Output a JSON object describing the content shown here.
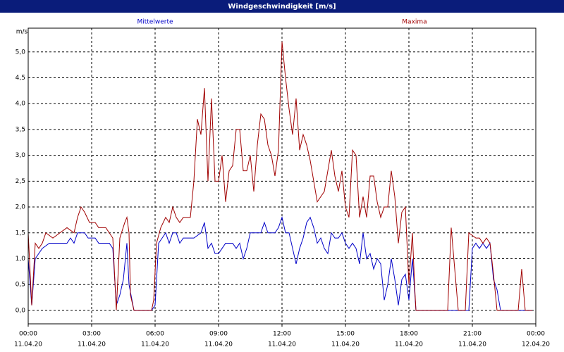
{
  "chart_data": {
    "type": "line",
    "title": "Windgeschwindigkeit [m/s]",
    "y_unit": "m/s",
    "xlim": [
      0,
      1440
    ],
    "xticks": [
      {
        "value": 0,
        "label": "00:00",
        "date": "11.04.20"
      },
      {
        "value": 180,
        "label": "03:00",
        "date": "11.04.20"
      },
      {
        "value": 360,
        "label": "06:00",
        "date": "11.04.20"
      },
      {
        "value": 540,
        "label": "09:00",
        "date": "11.04.20"
      },
      {
        "value": 720,
        "label": "12:00",
        "date": "11.04.20"
      },
      {
        "value": 900,
        "label": "15:00",
        "date": "11.04.20"
      },
      {
        "value": 1080,
        "label": "18:00",
        "date": "11.04.20"
      },
      {
        "value": 1260,
        "label": "21:00",
        "date": "11.04.20"
      },
      {
        "value": 1440,
        "label": "00:00",
        "date": "12.04.20"
      }
    ],
    "ylim": [
      -0.26,
      5.46
    ],
    "yticks": [
      {
        "value": 0,
        "label": "0,0"
      },
      {
        "value": 0.5,
        "label": "0,5"
      },
      {
        "value": 1,
        "label": "1,0"
      },
      {
        "value": 1.5,
        "label": "1,5"
      },
      {
        "value": 2,
        "label": "2,0"
      },
      {
        "value": 2.5,
        "label": "2,5"
      },
      {
        "value": 3,
        "label": "3,0"
      },
      {
        "value": 3.5,
        "label": "3,5"
      },
      {
        "value": 4,
        "label": "4,0"
      },
      {
        "value": 4.5,
        "label": "4,5"
      },
      {
        "value": 5,
        "label": "5,0"
      }
    ],
    "grid": true,
    "series": [
      {
        "name": "Mittelwerte",
        "color": "#0000c8",
        "x": [
          0,
          10,
          20,
          30,
          40,
          60,
          110,
          120,
          130,
          140,
          160,
          170,
          190,
          200,
          230,
          240,
          250,
          260,
          270,
          280,
          286,
          300,
          350,
          360,
          370,
          380,
          390,
          400,
          410,
          420,
          430,
          440,
          470,
          490,
          500,
          510,
          520,
          530,
          540,
          550,
          560,
          580,
          590,
          600,
          610,
          620,
          630,
          660,
          670,
          680,
          700,
          710,
          720,
          730,
          740,
          750,
          760,
          770,
          780,
          790,
          800,
          810,
          820,
          830,
          840,
          850,
          860,
          870,
          880,
          890,
          900,
          910,
          920,
          930,
          940,
          950,
          960,
          970,
          980,
          990,
          1000,
          1010,
          1020,
          1030,
          1040,
          1050,
          1060,
          1070,
          1080,
          1090,
          1100,
          1250,
          1260,
          1270,
          1280,
          1290,
          1300,
          1310,
          1320,
          1330,
          1340,
          1430
        ],
        "values": [
          1.0,
          0.1,
          1.0,
          1.1,
          1.2,
          1.3,
          1.3,
          1.4,
          1.3,
          1.5,
          1.5,
          1.4,
          1.4,
          1.3,
          1.3,
          1.2,
          0.1,
          0.3,
          0.6,
          1.3,
          0.5,
          0,
          0,
          0.1,
          1.3,
          1.4,
          1.5,
          1.3,
          1.5,
          1.5,
          1.3,
          1.4,
          1.4,
          1.5,
          1.7,
          1.2,
          1.3,
          1.1,
          1.1,
          1.2,
          1.3,
          1.3,
          1.2,
          1.3,
          1.0,
          1.2,
          1.5,
          1.5,
          1.7,
          1.5,
          1.5,
          1.6,
          1.8,
          1.5,
          1.5,
          1.2,
          0.9,
          1.2,
          1.4,
          1.7,
          1.8,
          1.6,
          1.3,
          1.4,
          1.2,
          1.1,
          1.5,
          1.4,
          1.4,
          1.5,
          1.3,
          1.2,
          1.3,
          1.2,
          0.9,
          1.5,
          1.0,
          1.1,
          0.8,
          1.0,
          0.9,
          0.2,
          0.5,
          1.0,
          0.6,
          0.1,
          0.6,
          0.7,
          0.2,
          1.0,
          0,
          0,
          1.2,
          1.3,
          1.2,
          1.3,
          1.2,
          1.3,
          0.6,
          0.4,
          0,
          0
        ]
      },
      {
        "name": "Maxima",
        "color": "#a00000",
        "x": [
          0,
          10,
          20,
          30,
          40,
          50,
          70,
          90,
          110,
          130,
          140,
          150,
          160,
          174,
          190,
          200,
          220,
          230,
          240,
          250,
          260,
          274,
          280,
          286,
          290,
          300,
          350,
          356,
          364,
          376,
          390,
          400,
          410,
          420,
          430,
          440,
          460,
          470,
          480,
          490,
          500,
          510,
          520,
          530,
          540,
          550,
          560,
          570,
          580,
          590,
          600,
          610,
          620,
          630,
          640,
          650,
          660,
          670,
          680,
          690,
          700,
          710,
          720,
          730,
          740,
          750,
          760,
          770,
          780,
          790,
          800,
          810,
          820,
          830,
          840,
          860,
          870,
          880,
          890,
          900,
          910,
          920,
          930,
          940,
          950,
          960,
          970,
          980,
          990,
          1000,
          1010,
          1020,
          1030,
          1040,
          1050,
          1060,
          1070,
          1080,
          1090,
          1096,
          1100,
          1190,
          1200,
          1210,
          1220,
          1240,
          1250,
          1270,
          1280,
          1290,
          1300,
          1310,
          1320,
          1330,
          1390,
          1400,
          1410,
          1430
        ],
        "values": [
          1.5,
          0.1,
          1.3,
          1.2,
          1.3,
          1.5,
          1.4,
          1.5,
          1.6,
          1.5,
          1.8,
          2.0,
          1.9,
          1.7,
          1.7,
          1.6,
          1.6,
          1.5,
          1.4,
          0.0,
          1.4,
          1.7,
          1.8,
          1.5,
          0.3,
          0,
          0,
          0.2,
          1.3,
          1.6,
          1.8,
          1.7,
          2.0,
          1.8,
          1.7,
          1.8,
          1.8,
          2.5,
          3.7,
          3.4,
          4.3,
          2.5,
          4.1,
          2.5,
          2.5,
          3.0,
          2.1,
          2.7,
          2.8,
          3.5,
          3.5,
          2.7,
          2.7,
          3.0,
          2.3,
          3.2,
          3.8,
          3.7,
          3.2,
          3.0,
          2.6,
          3.1,
          5.2,
          4.5,
          3.9,
          3.4,
          4.1,
          3.1,
          3.4,
          3.2,
          2.9,
          2.5,
          2.1,
          2.2,
          2.3,
          3.1,
          2.6,
          2.3,
          2.7,
          2.0,
          1.8,
          3.1,
          3.0,
          1.8,
          2.2,
          1.8,
          2.6,
          2.6,
          2.1,
          1.8,
          2.0,
          2.0,
          2.7,
          2.2,
          1.3,
          1.9,
          2.0,
          0.5,
          1.5,
          0.5,
          0,
          0,
          1.6,
          0.8,
          0,
          0,
          1.5,
          1.4,
          1.4,
          1.3,
          1.4,
          1.3,
          0.7,
          0,
          0,
          0.8,
          0,
          0
        ]
      }
    ]
  }
}
